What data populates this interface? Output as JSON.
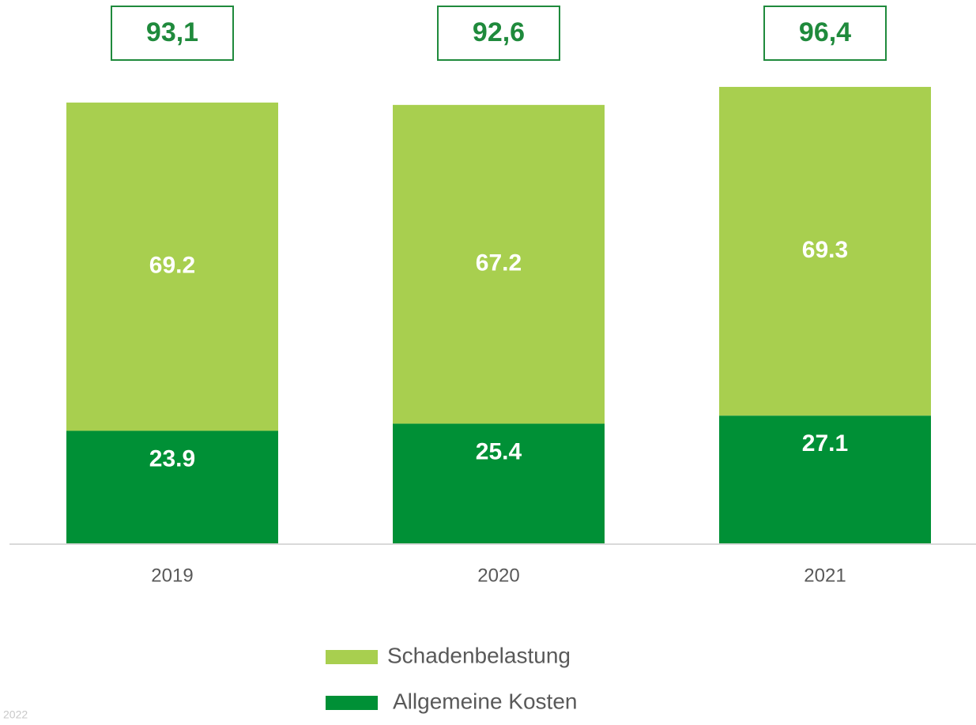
{
  "chart_data": {
    "type": "stacked_bar",
    "categories": [
      "2019",
      "2020",
      "2021"
    ],
    "series": [
      {
        "name": "Allgemeine Kosten",
        "color": "#009036",
        "values": [
          23.9,
          25.4,
          27.1
        ]
      },
      {
        "name": "Schadenbelastung",
        "color": "#a8cf4f",
        "values": [
          69.2,
          67.2,
          69.3
        ]
      }
    ],
    "totals": {
      "values": [
        93.1,
        92.6,
        96.4
      ],
      "value_labels": [
        "93,1",
        "92,6",
        "96,4"
      ],
      "color": "#1f8a3c"
    },
    "footnote": "2022"
  }
}
